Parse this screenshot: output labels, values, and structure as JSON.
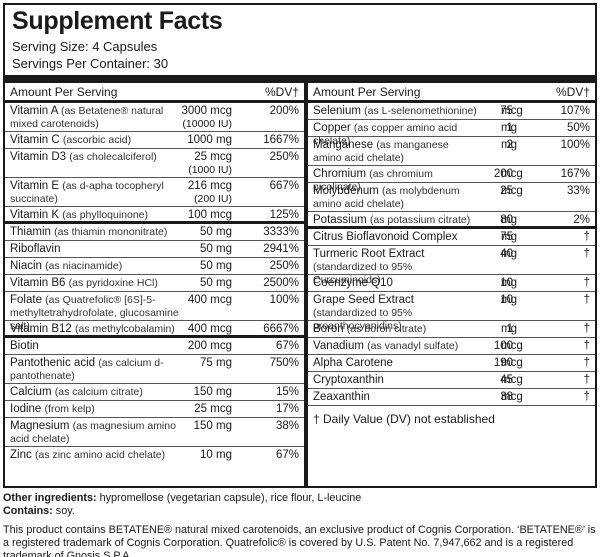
{
  "title": "Supplement Facts",
  "serving_size": "Serving Size: 4 Capsules",
  "servings_per_container": "Servings Per Container: 30",
  "left": {
    "header_amount": "Amount Per Serving",
    "header_dv": "%DV†",
    "rows": [
      {
        "name": "Vitamin A",
        "sub": "(as Betatene® natural mixed carotenoids)",
        "amount": "3000 mcg",
        "amount2": "(10000 IU)",
        "dv": "200%"
      },
      {
        "name": "Vitamin C",
        "sub": "(ascorbic acid)",
        "amount": "1000 mg",
        "dv": "1667%"
      },
      {
        "name": "Vitamin D3",
        "sub": "(as cholecalciferol)",
        "amount": "25 mcg",
        "amount2": "(1000 IU)",
        "dv": "250%"
      },
      {
        "name": "Vitamin E",
        "sub": "(as d-apha tocopheryl succinate)",
        "amount": "216 mcg",
        "amount2": "(200 IU)",
        "dv": "667%"
      },
      {
        "name": "Vitamin K",
        "sub": "(as phylloquinone)",
        "amount": "100 mcg",
        "dv": "125%"
      },
      {
        "name": "Thiamin",
        "sub": "(as thiamin mononitrate)",
        "amount": "50 mg",
        "dv": "3333%"
      },
      {
        "name": "Riboflavin",
        "sub": "",
        "amount": "50 mg",
        "dv": "2941%"
      },
      {
        "name": "Niacin",
        "sub": "(as niacinamide)",
        "amount": "50 mg",
        "dv": "250%"
      },
      {
        "name": "Vitamin B6",
        "sub": "(as pyridoxine HCl)",
        "amount": "50 mg",
        "dv": "2500%"
      },
      {
        "name": "Folate",
        "sub": "(as Quatrefolic® [6S]-5-methyltetrahydrofolate, glucosamine salt)",
        "amount": "400 mcg",
        "dv": "100%"
      },
      {
        "name": "Vitamin B12",
        "sub": "(as methylcobalamin)",
        "amount": "400 mcg",
        "dv": "6667%"
      },
      {
        "name": "Biotin",
        "sub": "",
        "amount": "200 mcg",
        "dv": "67%"
      },
      {
        "name": "Pantothenic acid",
        "sub": "(as calcium d-pantothenate)",
        "amount": "75 mg",
        "dv": "750%"
      },
      {
        "name": "Calcium",
        "sub": "(as calcium citrate)",
        "amount": "150 mg",
        "dv": "15%"
      },
      {
        "name": "Iodine",
        "sub": "(from kelp)",
        "amount": "25 mcg",
        "dv": "17%"
      },
      {
        "name": "Magnesium",
        "sub": "(as magnesium amino acid chelate)",
        "amount": "150 mg",
        "dv": "38%"
      },
      {
        "name": "Zinc",
        "sub": "(as zinc amino acid chelate)",
        "amount": "10 mg",
        "dv": "67%"
      }
    ]
  },
  "right": {
    "header_amount": "Amount Per Serving",
    "header_dv": "%DV†",
    "rows": [
      {
        "name": "Selenium",
        "sub": "(as L-selenomethionine)",
        "qty": "75",
        "unit": "mcg",
        "dv": "107%"
      },
      {
        "name": "Copper",
        "sub": "(as copper amino acid chelate)",
        "qty": "1",
        "unit": "mg",
        "dv": "50%"
      },
      {
        "name": "Manganese",
        "sub": "(as manganese amino acid chelate)",
        "qty": "2",
        "unit": "mg",
        "dv": "100%"
      },
      {
        "name": "Chromium",
        "sub": "(as chromium picolinate)",
        "qty": "200",
        "unit": "mcg",
        "dv": "167%"
      },
      {
        "name": "Molybdenum",
        "sub": "(as molybdenum amino acid chelate)",
        "qty": "25",
        "unit": "mcg",
        "dv": "33%"
      },
      {
        "name": "Potassium",
        "sub": "(as potassium citrate)",
        "qty": "80",
        "unit": "mg",
        "dv": "2%"
      },
      {
        "name": "Citrus Bioflavonoid Complex",
        "sub": "",
        "qty": "75",
        "unit": "mg",
        "dv": "†"
      },
      {
        "name": "Turmeric Root Extract",
        "sub": "(standardized to 95% Curcuminoids)",
        "qty": "40",
        "unit": "mg",
        "dv": "†"
      },
      {
        "name": "Coenzyme Q10",
        "sub": "",
        "qty": "10",
        "unit": "mg",
        "dv": "†"
      },
      {
        "name": "Grape Seed Extract",
        "sub": "(standardized to 95% proanthocyanidins)",
        "qty": "10",
        "unit": "mg",
        "dv": "†"
      },
      {
        "name": "Boron",
        "sub": "(as boron citrate)",
        "qty": "1",
        "unit": "mg",
        "dv": "†"
      },
      {
        "name": "Vanadium",
        "sub": "(as vanadyl sulfate)",
        "qty": "100",
        "unit": "mcg",
        "dv": "†"
      },
      {
        "name": "Alpha Carotene",
        "sub": "",
        "qty": "190",
        "unit": "mcg",
        "dv": "†"
      },
      {
        "name": "Cryptoxanthin",
        "sub": "",
        "qty": "45",
        "unit": "mcg",
        "dv": "†"
      },
      {
        "name": "Zeaxanthin",
        "sub": "",
        "qty": "38",
        "unit": "mcg",
        "dv": "†"
      }
    ],
    "footnote": "† Daily Value (DV) not established"
  },
  "other_ingredients_label": "Other ingredients:",
  "other_ingredients": "hypromellose (vegetarian capsule), rice flour, L-leucine",
  "contains_label": "Contains:",
  "contains": "soy.",
  "legal": "This product contains BETATENE® natural mixed carotenoids, an exclusive product of Cognis Corporation. ‘BETATENE®’ is a registered trademark of Cognis Corporation. Quatrefolic® is covered by U.S. Patent No. 7,947,662 and is a registered trademark of Gnosis S.P.A."
}
